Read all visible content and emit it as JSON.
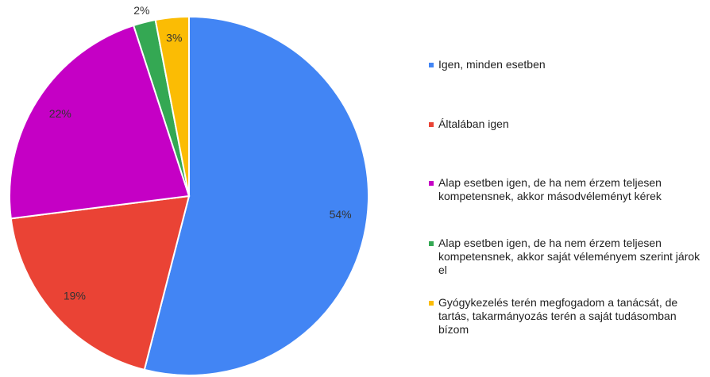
{
  "chart_data": {
    "type": "pie",
    "categories": [
      "Igen, minden esetben",
      "Általában igen",
      "Alap esetben igen, de ha nem érzem teljesen kompetensnek, akkor másodvéleményt kérek",
      "Alap esetben igen, de ha nem érzem teljesen kompetensnek, akkor saját véleményem szerint járok el",
      "Gyógykezelés terén megfogadom a tanácsát, de tartás, takarmányozás terén a saját tudásomban bízom"
    ],
    "values": [
      54,
      19,
      22,
      2,
      3
    ],
    "value_labels": [
      "54%",
      "19%",
      "22%",
      "2%",
      "3%"
    ],
    "colors": [
      "#4285f4",
      "#ea4335",
      "#c500c5",
      "#34a853",
      "#fbbc04"
    ],
    "legend": "right"
  }
}
